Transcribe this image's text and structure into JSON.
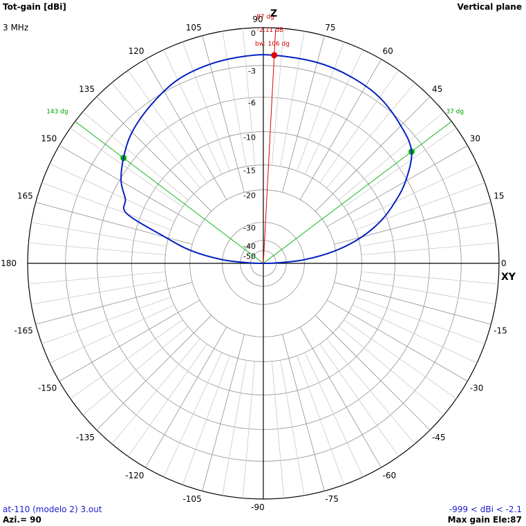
{
  "header": {
    "title": "Tot-gain [dBi]",
    "plane": "Vertical plane",
    "frequency": "3 MHz"
  },
  "footer": {
    "file": "at-110 (modelo 2) 3.out",
    "azimuth": "Azi.= 90",
    "range": "-999 < dBi < -2.1",
    "max_gain": "Max gain Ele:87"
  },
  "axis_labels": {
    "z": "Z",
    "xy": "XY"
  },
  "colors": {
    "pattern": "#0020c0",
    "beamwidth": "#00b000",
    "max": "#e00000",
    "grid": "#a0a0a0"
  },
  "chart_data": {
    "type": "polar",
    "angle_ticks": [
      0,
      15,
      30,
      45,
      60,
      75,
      90,
      105,
      120,
      135,
      150,
      165,
      180,
      -165,
      -150,
      -135,
      -120,
      -105,
      -90,
      -75,
      -60,
      -45,
      -30,
      -15
    ],
    "angle_tick_labels": [
      "0",
      "15",
      "30",
      "45",
      "60",
      "75",
      "90",
      "105",
      "120",
      "135",
      "150",
      "165",
      "180",
      "-165",
      "-150",
      "-135",
      "-120",
      "-105",
      "-90",
      "-75",
      "-60",
      "-45",
      "-30",
      "-15"
    ],
    "radial_ticks": [
      0,
      -3,
      -6,
      -10,
      -15,
      -20,
      -30,
      -40,
      -50
    ],
    "radial_tick_labels": [
      "0",
      "-3",
      "-6",
      "-10",
      "-15",
      "-20",
      "-30",
      "-40",
      "-50"
    ],
    "r_unit": "dBi",
    "series": [
      {
        "elevation_deg": [
          0,
          2,
          5,
          10,
          15,
          20,
          25,
          30,
          37,
          45,
          55,
          65,
          75,
          87,
          95,
          105,
          115,
          125,
          135,
          143,
          150,
          155,
          160,
          165,
          170,
          175,
          178,
          180
        ],
        "gain_dbi": [
          -999,
          -50.3,
          -30.2,
          -20.0,
          -14.4,
          -10.8,
          -8.3,
          -6.2,
          -4.1,
          -3.3,
          -2.6,
          -2.3,
          -2.15,
          -2.11,
          -2.15,
          -2.3,
          -2.6,
          -3.3,
          -4.1,
          -5.1,
          -6.2,
          -7.5,
          -8.3,
          -14.4,
          -20.0,
          -30.2,
          -50.3,
          -999
        ]
      }
    ],
    "max_gain": {
      "elevation_deg": 87,
      "gain_dbi": -2.11,
      "angle_label": "87 dg",
      "gain_label": "-2.11 dB"
    },
    "beamwidth": {
      "lower_deg": 37,
      "upper_deg": 143,
      "lower_label": "37 dg",
      "upper_label": "143 dg",
      "width_label": "bw: 106 dg"
    }
  }
}
